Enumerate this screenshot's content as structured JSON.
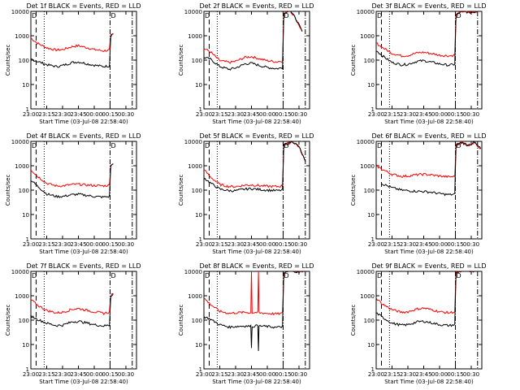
{
  "colors": {
    "events": "#000000",
    "lld": "#ff0000",
    "axes": "#000000",
    "background": "#ffffff"
  },
  "chart_data": {
    "type": "line",
    "scale": "log",
    "ylim": [
      1,
      10000
    ],
    "y_ticks": [
      "1",
      "10",
      "100",
      "1000",
      "10000"
    ],
    "x_ticks": [
      "23:00",
      "23:15",
      "23:30",
      "23:45",
      "00:00",
      "00:15",
      "00:30"
    ],
    "x_tick_hours": [
      23.0,
      23.25,
      23.5,
      23.75,
      24.0,
      24.25,
      24.5
    ],
    "xlim": [
      23.0,
      24.667
    ],
    "xlabel": "Start Time (03-Jul-08 22:58:40)",
    "ylabel": "Counts/sec",
    "markers": {
      "dashed_hour": 23.083,
      "dotted_hour": 23.21,
      "dashdot_hour": 24.25,
      "dashdot2_hour": 24.6
    },
    "marker_label": "D",
    "panels": [
      {
        "title": "Det 1f BLACK = Events, RED = LLD",
        "events": [
          [
            23.0,
            110
          ],
          [
            23.1,
            90
          ],
          [
            23.25,
            65
          ],
          [
            23.4,
            55
          ],
          [
            23.5,
            60
          ],
          [
            23.65,
            80
          ],
          [
            23.75,
            85
          ],
          [
            23.9,
            70
          ],
          [
            24.0,
            62
          ],
          [
            24.15,
            55
          ],
          [
            24.24,
            58
          ],
          [
            24.26,
            1000
          ],
          [
            24.3,
            1200
          ]
        ],
        "lld": [
          [
            23.0,
            800
          ],
          [
            23.1,
            500
          ],
          [
            23.25,
            320
          ],
          [
            23.4,
            260
          ],
          [
            23.5,
            270
          ],
          [
            23.65,
            360
          ],
          [
            23.75,
            390
          ],
          [
            23.9,
            320
          ],
          [
            24.0,
            270
          ],
          [
            24.15,
            240
          ],
          [
            24.24,
            260
          ],
          [
            24.26,
            1000
          ],
          [
            24.3,
            1200
          ]
        ]
      },
      {
        "title": "Det 2f BLACK = Events, RED = LLD",
        "events": [
          [
            23.0,
            130
          ],
          [
            23.1,
            110
          ],
          [
            23.25,
            55
          ],
          [
            23.4,
            42
          ],
          [
            23.5,
            48
          ],
          [
            23.65,
            70
          ],
          [
            23.75,
            75
          ],
          [
            23.9,
            58
          ],
          [
            24.0,
            50
          ],
          [
            24.15,
            45
          ],
          [
            24.24,
            48
          ],
          [
            24.26,
            8000
          ],
          [
            24.35,
            12000
          ],
          [
            24.45,
            5000
          ],
          [
            24.55,
            1500
          ]
        ],
        "lld": [
          [
            23.0,
            300
          ],
          [
            23.1,
            220
          ],
          [
            23.25,
            95
          ],
          [
            23.4,
            80
          ],
          [
            23.5,
            90
          ],
          [
            23.65,
            130
          ],
          [
            23.75,
            140
          ],
          [
            23.9,
            110
          ],
          [
            24.0,
            95
          ],
          [
            24.15,
            85
          ],
          [
            24.24,
            95
          ],
          [
            24.26,
            8000
          ],
          [
            24.35,
            12000
          ],
          [
            24.45,
            5000
          ],
          [
            24.55,
            1500
          ]
        ]
      },
      {
        "title": "Det 3f BLACK = Events, RED = LLD",
        "events": [
          [
            23.0,
            250
          ],
          [
            23.1,
            150
          ],
          [
            23.25,
            80
          ],
          [
            23.4,
            65
          ],
          [
            23.5,
            68
          ],
          [
            23.65,
            90
          ],
          [
            23.75,
            95
          ],
          [
            23.9,
            80
          ],
          [
            24.0,
            70
          ],
          [
            24.15,
            62
          ],
          [
            24.24,
            68
          ],
          [
            24.26,
            7000
          ],
          [
            24.35,
            10000
          ],
          [
            24.5,
            9000
          ],
          [
            24.6,
            10000
          ]
        ],
        "lld": [
          [
            23.0,
            500
          ],
          [
            23.1,
            330
          ],
          [
            23.25,
            190
          ],
          [
            23.4,
            150
          ],
          [
            23.5,
            155
          ],
          [
            23.65,
            200
          ],
          [
            23.75,
            210
          ],
          [
            23.9,
            180
          ],
          [
            24.0,
            160
          ],
          [
            24.15,
            150
          ],
          [
            24.24,
            160
          ],
          [
            24.26,
            7000
          ],
          [
            24.35,
            10000
          ],
          [
            24.5,
            9000
          ],
          [
            24.6,
            10000
          ]
        ]
      },
      {
        "title": "Det 4f BLACK = Events, RED = LLD",
        "events": [
          [
            23.0,
            260
          ],
          [
            23.1,
            150
          ],
          [
            23.25,
            70
          ],
          [
            23.4,
            55
          ],
          [
            23.5,
            55
          ],
          [
            23.65,
            65
          ],
          [
            23.75,
            68
          ],
          [
            23.9,
            60
          ],
          [
            24.0,
            55
          ],
          [
            24.15,
            52
          ],
          [
            24.24,
            55
          ],
          [
            24.26,
            1000
          ],
          [
            24.3,
            1200
          ]
        ],
        "lld": [
          [
            23.0,
            700
          ],
          [
            23.1,
            380
          ],
          [
            23.25,
            190
          ],
          [
            23.4,
            150
          ],
          [
            23.5,
            150
          ],
          [
            23.65,
            170
          ],
          [
            23.75,
            175
          ],
          [
            23.9,
            160
          ],
          [
            24.0,
            155
          ],
          [
            24.15,
            150
          ],
          [
            24.24,
            160
          ],
          [
            24.26,
            1000
          ],
          [
            24.3,
            1200
          ]
        ]
      },
      {
        "title": "Det 5f BLACK = Events, RED = LLD",
        "events": [
          [
            23.0,
            320
          ],
          [
            23.1,
            200
          ],
          [
            23.25,
            110
          ],
          [
            23.4,
            95
          ],
          [
            23.5,
            95
          ],
          [
            23.65,
            110
          ],
          [
            23.75,
            115
          ],
          [
            23.9,
            105
          ],
          [
            24.0,
            100
          ],
          [
            24.15,
            95
          ],
          [
            24.24,
            100
          ],
          [
            24.26,
            7000
          ],
          [
            24.4,
            10000
          ],
          [
            24.5,
            6000
          ],
          [
            24.6,
            1500
          ]
        ],
        "lld": [
          [
            23.0,
            700
          ],
          [
            23.1,
            350
          ],
          [
            23.25,
            170
          ],
          [
            23.4,
            140
          ],
          [
            23.5,
            140
          ],
          [
            23.65,
            160
          ],
          [
            23.75,
            165
          ],
          [
            23.9,
            150
          ],
          [
            24.0,
            145
          ],
          [
            24.15,
            140
          ],
          [
            24.24,
            150
          ],
          [
            24.26,
            7000
          ],
          [
            24.4,
            10000
          ],
          [
            24.5,
            6000
          ],
          [
            24.6,
            1500
          ]
        ]
      },
      {
        "title": "Det 6f BLACK = Events, RED = LLD",
        "events": [
          [
            23.08,
            190
          ],
          [
            23.15,
            160
          ],
          [
            23.25,
            125
          ],
          [
            23.4,
            100
          ],
          [
            23.5,
            95
          ],
          [
            23.65,
            90
          ],
          [
            23.75,
            88
          ],
          [
            23.9,
            80
          ],
          [
            24.0,
            72
          ],
          [
            24.15,
            65
          ],
          [
            24.24,
            68
          ],
          [
            24.26,
            7000
          ],
          [
            24.35,
            9000
          ],
          [
            24.45,
            7000
          ],
          [
            24.55,
            9000
          ],
          [
            24.65,
            5000
          ]
        ],
        "lld": [
          [
            23.0,
            1000
          ],
          [
            23.1,
            700
          ],
          [
            23.25,
            450
          ],
          [
            23.4,
            370
          ],
          [
            23.5,
            380
          ],
          [
            23.65,
            430
          ],
          [
            23.75,
            450
          ],
          [
            23.9,
            410
          ],
          [
            24.0,
            380
          ],
          [
            24.15,
            350
          ],
          [
            24.24,
            360
          ],
          [
            24.26,
            7000
          ],
          [
            24.35,
            9000
          ],
          [
            24.45,
            7000
          ],
          [
            24.55,
            9000
          ],
          [
            24.65,
            5000
          ]
        ]
      },
      {
        "title": "Det 7f BLACK = Events, RED = LLD",
        "events": [
          [
            23.0,
            150
          ],
          [
            23.1,
            110
          ],
          [
            23.25,
            75
          ],
          [
            23.4,
            60
          ],
          [
            23.5,
            62
          ],
          [
            23.65,
            85
          ],
          [
            23.75,
            90
          ],
          [
            23.9,
            75
          ],
          [
            24.0,
            65
          ],
          [
            24.15,
            58
          ],
          [
            24.24,
            62
          ],
          [
            24.26,
            1000
          ],
          [
            24.3,
            1200
          ]
        ],
        "lld": [
          [
            23.0,
            700
          ],
          [
            23.1,
            420
          ],
          [
            23.25,
            250
          ],
          [
            23.4,
            200
          ],
          [
            23.5,
            210
          ],
          [
            23.65,
            280
          ],
          [
            23.75,
            300
          ],
          [
            23.9,
            250
          ],
          [
            24.0,
            220
          ],
          [
            24.15,
            190
          ],
          [
            24.24,
            210
          ],
          [
            24.26,
            1000
          ],
          [
            24.3,
            1200
          ]
        ]
      },
      {
        "title": "Det 8f BLACK = Events, RED = LLD",
        "events": [
          [
            23.0,
            140
          ],
          [
            23.1,
            110
          ],
          [
            23.25,
            65
          ],
          [
            23.4,
            52
          ],
          [
            23.5,
            55
          ],
          [
            23.65,
            58
          ],
          [
            23.74,
            56
          ],
          [
            23.75,
            8
          ],
          [
            23.76,
            55
          ],
          [
            23.85,
            60
          ],
          [
            23.86,
            6
          ],
          [
            23.87,
            58
          ],
          [
            24.0,
            55
          ],
          [
            24.15,
            50
          ],
          [
            24.24,
            55
          ],
          [
            24.26,
            8000
          ],
          [
            24.35,
            12000
          ],
          [
            24.5,
            9000
          ],
          [
            24.6,
            12000
          ]
        ],
        "lld": [
          [
            23.0,
            800
          ],
          [
            23.1,
            450
          ],
          [
            23.25,
            230
          ],
          [
            23.4,
            190
          ],
          [
            23.5,
            200
          ],
          [
            23.65,
            210
          ],
          [
            23.74,
            200
          ],
          [
            23.75,
            12000
          ],
          [
            23.76,
            200
          ],
          [
            23.85,
            210
          ],
          [
            23.86,
            12000
          ],
          [
            23.87,
            200
          ],
          [
            24.0,
            190
          ],
          [
            24.15,
            180
          ],
          [
            24.24,
            190
          ],
          [
            24.26,
            8000
          ],
          [
            24.35,
            12000
          ],
          [
            24.5,
            9000
          ],
          [
            24.6,
            12000
          ]
        ]
      },
      {
        "title": "Det 9f BLACK = Events, RED = LLD",
        "events": [
          [
            23.0,
            200
          ],
          [
            23.1,
            130
          ],
          [
            23.25,
            75
          ],
          [
            23.4,
            62
          ],
          [
            23.5,
            65
          ],
          [
            23.65,
            85
          ],
          [
            23.75,
            90
          ],
          [
            23.9,
            75
          ],
          [
            24.0,
            65
          ],
          [
            24.15,
            60
          ],
          [
            24.24,
            65
          ],
          [
            24.26,
            9000
          ],
          [
            24.4,
            11000
          ],
          [
            24.55,
            10000
          ]
        ],
        "lld": [
          [
            23.0,
            800
          ],
          [
            23.1,
            450
          ],
          [
            23.25,
            270
          ],
          [
            23.4,
            210
          ],
          [
            23.5,
            220
          ],
          [
            23.65,
            290
          ],
          [
            23.75,
            310
          ],
          [
            23.9,
            260
          ],
          [
            24.0,
            220
          ],
          [
            24.15,
            200
          ],
          [
            24.24,
            220
          ],
          [
            24.26,
            9000
          ],
          [
            24.4,
            11000
          ],
          [
            24.55,
            10000
          ]
        ]
      }
    ]
  }
}
